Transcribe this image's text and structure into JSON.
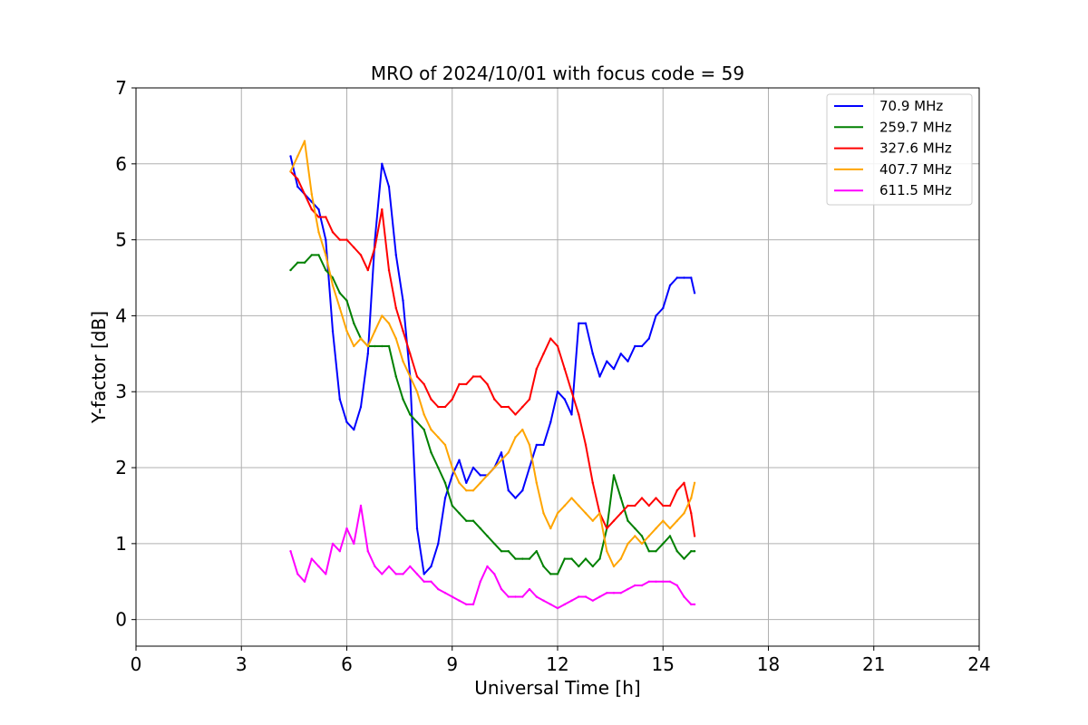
{
  "chart_data": {
    "type": "line",
    "title": "MRO of 2024/10/01 with focus code = 59",
    "xlabel": "Universal Time [h]",
    "ylabel": "Y-factor [dB]",
    "xlim": [
      0,
      24
    ],
    "ylim": [
      -0.35,
      7
    ],
    "xticks": [
      0,
      3,
      6,
      9,
      12,
      15,
      18,
      21,
      24
    ],
    "yticks": [
      0,
      1,
      2,
      3,
      4,
      5,
      6,
      7
    ],
    "grid": true,
    "legend_position": "top-right",
    "series": [
      {
        "name": "70.9 MHz",
        "legend_label": " 70.9 MHz",
        "color": "#0000ff",
        "x": [
          4.4,
          4.6,
          4.8,
          5.0,
          5.2,
          5.4,
          5.6,
          5.8,
          6.0,
          6.2,
          6.4,
          6.6,
          6.8,
          7.0,
          7.2,
          7.4,
          7.6,
          7.8,
          8.0,
          8.2,
          8.4,
          8.6,
          8.8,
          9.0,
          9.2,
          9.4,
          9.6,
          9.8,
          10.0,
          10.2,
          10.4,
          10.6,
          10.8,
          11.0,
          11.2,
          11.4,
          11.6,
          11.8,
          12.0,
          12.2,
          12.4,
          12.6,
          12.8,
          13.0,
          13.2,
          13.4,
          13.6,
          13.8,
          14.0,
          14.2,
          14.4,
          14.6,
          14.8,
          15.0,
          15.2,
          15.4,
          15.6,
          15.8,
          15.9
        ],
        "y": [
          6.1,
          5.7,
          5.6,
          5.5,
          5.4,
          5.0,
          3.8,
          2.9,
          2.6,
          2.5,
          2.8,
          3.5,
          5.0,
          6.0,
          5.7,
          4.8,
          4.2,
          3.2,
          1.2,
          0.6,
          0.7,
          1.0,
          1.6,
          1.9,
          2.1,
          1.8,
          2.0,
          1.9,
          1.9,
          2.0,
          2.2,
          1.7,
          1.6,
          1.7,
          2.0,
          2.3,
          2.3,
          2.6,
          3.0,
          2.9,
          2.7,
          3.9,
          3.9,
          3.5,
          3.2,
          3.4,
          3.3,
          3.5,
          3.4,
          3.6,
          3.6,
          3.7,
          4.0,
          4.1,
          4.4,
          4.5,
          4.5,
          4.5,
          4.3
        ]
      },
      {
        "name": "259.7 MHz",
        "legend_label": "259.7 MHz",
        "color": "#008000",
        "x": [
          4.4,
          4.6,
          4.8,
          5.0,
          5.2,
          5.4,
          5.6,
          5.8,
          6.0,
          6.2,
          6.4,
          6.6,
          6.8,
          7.0,
          7.2,
          7.4,
          7.6,
          7.8,
          8.0,
          8.2,
          8.4,
          8.6,
          8.8,
          9.0,
          9.2,
          9.4,
          9.6,
          9.8,
          10.0,
          10.2,
          10.4,
          10.6,
          10.8,
          11.0,
          11.2,
          11.4,
          11.6,
          11.8,
          12.0,
          12.2,
          12.4,
          12.6,
          12.8,
          13.0,
          13.2,
          13.4,
          13.6,
          13.8,
          14.0,
          14.2,
          14.4,
          14.6,
          14.8,
          15.0,
          15.2,
          15.4,
          15.6,
          15.8,
          15.9
        ],
        "y": [
          4.6,
          4.7,
          4.7,
          4.8,
          4.8,
          4.6,
          4.5,
          4.3,
          4.2,
          3.9,
          3.7,
          3.6,
          3.6,
          3.6,
          3.6,
          3.2,
          2.9,
          2.7,
          2.6,
          2.5,
          2.2,
          2.0,
          1.8,
          1.5,
          1.4,
          1.3,
          1.3,
          1.2,
          1.1,
          1.0,
          0.9,
          0.9,
          0.8,
          0.8,
          0.8,
          0.9,
          0.7,
          0.6,
          0.6,
          0.8,
          0.8,
          0.7,
          0.8,
          0.7,
          0.8,
          1.2,
          1.9,
          1.6,
          1.3,
          1.2,
          1.1,
          0.9,
          0.9,
          1.0,
          1.1,
          0.9,
          0.8,
          0.9,
          0.9
        ]
      },
      {
        "name": "327.6 MHz",
        "legend_label": "327.6 MHz",
        "color": "#ff0000",
        "x": [
          4.4,
          4.6,
          4.8,
          5.0,
          5.2,
          5.4,
          5.6,
          5.8,
          6.0,
          6.2,
          6.4,
          6.6,
          6.8,
          7.0,
          7.2,
          7.4,
          7.6,
          7.8,
          8.0,
          8.2,
          8.4,
          8.6,
          8.8,
          9.0,
          9.2,
          9.4,
          9.6,
          9.8,
          10.0,
          10.2,
          10.4,
          10.6,
          10.8,
          11.0,
          11.2,
          11.4,
          11.6,
          11.8,
          12.0,
          12.2,
          12.4,
          12.6,
          12.8,
          13.0,
          13.2,
          13.4,
          13.6,
          13.8,
          14.0,
          14.2,
          14.4,
          14.6,
          14.8,
          15.0,
          15.2,
          15.4,
          15.6,
          15.8,
          15.9
        ],
        "y": [
          5.9,
          5.8,
          5.6,
          5.4,
          5.3,
          5.3,
          5.1,
          5.0,
          5.0,
          4.9,
          4.8,
          4.6,
          4.9,
          5.4,
          4.6,
          4.1,
          3.8,
          3.5,
          3.2,
          3.1,
          2.9,
          2.8,
          2.8,
          2.9,
          3.1,
          3.1,
          3.2,
          3.2,
          3.1,
          2.9,
          2.8,
          2.8,
          2.7,
          2.8,
          2.9,
          3.3,
          3.5,
          3.7,
          3.6,
          3.3,
          3.0,
          2.7,
          2.3,
          1.8,
          1.4,
          1.2,
          1.3,
          1.4,
          1.5,
          1.5,
          1.6,
          1.5,
          1.6,
          1.5,
          1.5,
          1.7,
          1.8,
          1.4,
          1.1
        ]
      },
      {
        "name": "407.7 MHz",
        "legend_label": "407.7 MHz",
        "color": "#ffa500",
        "x": [
          4.4,
          4.6,
          4.8,
          5.0,
          5.2,
          5.4,
          5.6,
          5.8,
          6.0,
          6.2,
          6.4,
          6.6,
          6.8,
          7.0,
          7.2,
          7.4,
          7.6,
          7.8,
          8.0,
          8.2,
          8.4,
          8.6,
          8.8,
          9.0,
          9.2,
          9.4,
          9.6,
          9.8,
          10.0,
          10.2,
          10.4,
          10.6,
          10.8,
          11.0,
          11.2,
          11.4,
          11.6,
          11.8,
          12.0,
          12.2,
          12.4,
          12.6,
          12.8,
          13.0,
          13.2,
          13.4,
          13.6,
          13.8,
          14.0,
          14.2,
          14.4,
          14.6,
          14.8,
          15.0,
          15.2,
          15.4,
          15.6,
          15.8,
          15.9
        ],
        "y": [
          5.9,
          6.1,
          6.3,
          5.6,
          5.1,
          4.8,
          4.4,
          4.1,
          3.8,
          3.6,
          3.7,
          3.6,
          3.8,
          4.0,
          3.9,
          3.7,
          3.4,
          3.2,
          3.0,
          2.7,
          2.5,
          2.4,
          2.3,
          2.0,
          1.8,
          1.7,
          1.7,
          1.8,
          1.9,
          2.0,
          2.1,
          2.2,
          2.4,
          2.5,
          2.3,
          1.8,
          1.4,
          1.2,
          1.4,
          1.5,
          1.6,
          1.5,
          1.4,
          1.3,
          1.4,
          0.9,
          0.7,
          0.8,
          1.0,
          1.1,
          1.0,
          1.1,
          1.2,
          1.3,
          1.2,
          1.3,
          1.4,
          1.6,
          1.8
        ]
      },
      {
        "name": "611.5 MHz",
        "legend_label": "611.5 MHz",
        "color": "#ff00ff",
        "x": [
          4.4,
          4.6,
          4.8,
          5.0,
          5.2,
          5.4,
          5.6,
          5.8,
          6.0,
          6.2,
          6.4,
          6.6,
          6.8,
          7.0,
          7.2,
          7.4,
          7.6,
          7.8,
          8.0,
          8.2,
          8.4,
          8.6,
          8.8,
          9.0,
          9.2,
          9.4,
          9.6,
          9.8,
          10.0,
          10.2,
          10.4,
          10.6,
          10.8,
          11.0,
          11.2,
          11.4,
          11.6,
          11.8,
          12.0,
          12.2,
          12.4,
          12.6,
          12.8,
          13.0,
          13.2,
          13.4,
          13.6,
          13.8,
          14.0,
          14.2,
          14.4,
          14.6,
          14.8,
          15.0,
          15.2,
          15.4,
          15.6,
          15.8,
          15.9
        ],
        "y": [
          0.9,
          0.6,
          0.5,
          0.8,
          0.7,
          0.6,
          1.0,
          0.9,
          1.2,
          1.0,
          1.5,
          0.9,
          0.7,
          0.6,
          0.7,
          0.6,
          0.6,
          0.7,
          0.6,
          0.5,
          0.5,
          0.4,
          0.35,
          0.3,
          0.25,
          0.2,
          0.2,
          0.5,
          0.7,
          0.6,
          0.4,
          0.3,
          0.3,
          0.3,
          0.4,
          0.3,
          0.25,
          0.2,
          0.15,
          0.2,
          0.25,
          0.3,
          0.3,
          0.25,
          0.3,
          0.35,
          0.35,
          0.35,
          0.4,
          0.45,
          0.45,
          0.5,
          0.5,
          0.5,
          0.5,
          0.45,
          0.3,
          0.2,
          0.2
        ]
      }
    ]
  }
}
